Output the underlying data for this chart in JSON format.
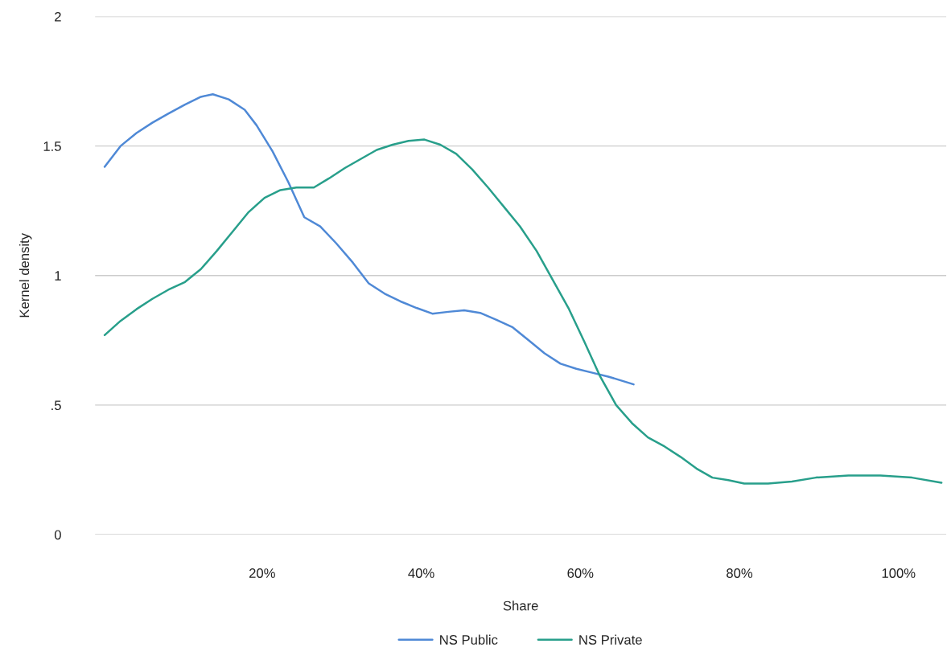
{
  "chart_data": {
    "type": "line",
    "xlabel": "Share",
    "ylabel": "Kernel density",
    "xlim": [
      -1,
      106
    ],
    "xticks": [
      {
        "value": 20,
        "label": "20%"
      },
      {
        "value": 40,
        "label": "40%"
      },
      {
        "value": 60,
        "label": "60%"
      },
      {
        "value": 80,
        "label": "80%"
      },
      {
        "value": 100,
        "label": "100%"
      }
    ],
    "ylim": [
      0,
      2
    ],
    "yticks": [
      0,
      {
        "value": 0.5,
        "label": ".5"
      },
      1,
      1.5,
      2
    ],
    "grid": "y",
    "legend": "bottom",
    "marker": "none",
    "line_style": "solid",
    "series": [
      {
        "name": "NS Public",
        "color": "#4f89d6",
        "x": [
          0.2,
          2.2,
          4.2,
          6.2,
          8.2,
          10.3,
          12.3,
          13.8,
          15.8,
          17.8,
          19.3,
          21.3,
          23.3,
          25.3,
          27.3,
          29.3,
          31.4,
          33.4,
          35.4,
          37.4,
          39.4,
          41.4,
          43.4,
          45.4,
          47.4,
          49.4,
          51.5,
          53.5,
          55.5,
          57.5,
          59.5,
          61.5,
          63.5,
          66.7
        ],
        "values": [
          1.42,
          1.5,
          1.55,
          1.59,
          1.625,
          1.66,
          1.69,
          1.7,
          1.68,
          1.64,
          1.58,
          1.48,
          1.36,
          1.225,
          1.19,
          1.125,
          1.05,
          0.97,
          0.93,
          0.9,
          0.875,
          0.853,
          0.86,
          0.866,
          0.856,
          0.83,
          0.8,
          0.75,
          0.7,
          0.66,
          0.64,
          0.625,
          0.61,
          0.58
        ]
      },
      {
        "name": "NS Private",
        "color": "#289f8b",
        "x": [
          0.2,
          2.2,
          4.2,
          6.2,
          8.2,
          10.3,
          12.3,
          14.3,
          16.3,
          18.3,
          20.3,
          22.3,
          24.3,
          26.5,
          28.4,
          30.4,
          32.4,
          34.4,
          36.4,
          38.4,
          40.4,
          42.4,
          44.4,
          46.4,
          48.4,
          50.4,
          52.4,
          54.5,
          56.5,
          58.5,
          60.5,
          62.5,
          64.5,
          66.5,
          68.5,
          70.6,
          72.6,
          74.6,
          76.6,
          78.6,
          80.6,
          83.6,
          86.6,
          89.6,
          93.7,
          97.7,
          101.7,
          105.4
        ],
        "values": [
          0.77,
          0.825,
          0.87,
          0.91,
          0.945,
          0.975,
          1.025,
          1.095,
          1.17,
          1.245,
          1.3,
          1.33,
          1.34,
          1.34,
          1.375,
          1.415,
          1.45,
          1.485,
          1.505,
          1.52,
          1.525,
          1.505,
          1.47,
          1.41,
          1.34,
          1.265,
          1.19,
          1.095,
          0.985,
          0.875,
          0.745,
          0.61,
          0.5,
          0.43,
          0.375,
          0.34,
          0.3,
          0.255,
          0.22,
          0.21,
          0.197,
          0.197,
          0.205,
          0.22,
          0.228,
          0.228,
          0.22,
          0.2
        ]
      }
    ]
  }
}
